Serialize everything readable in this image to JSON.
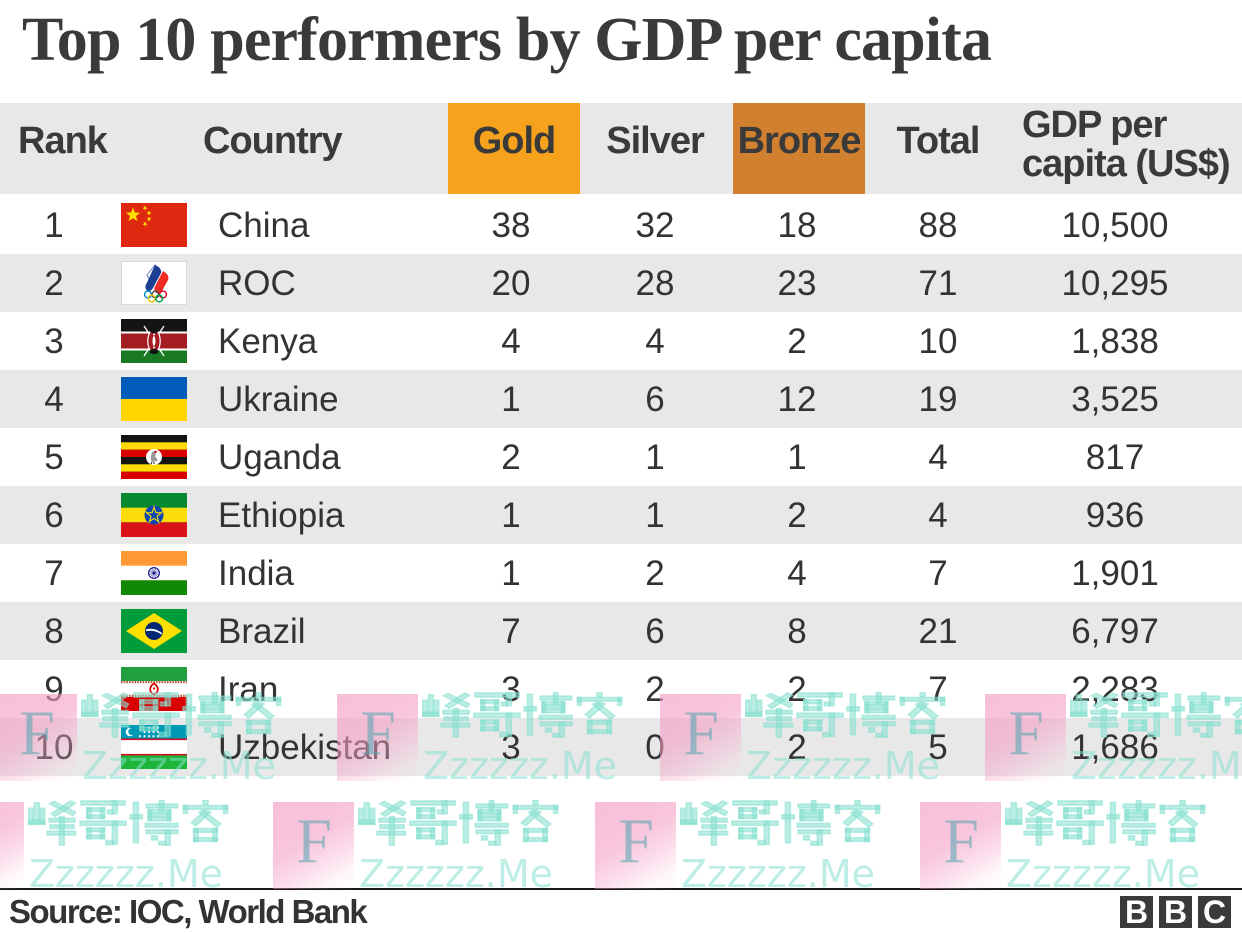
{
  "title": "Top 10 performers by GDP per capita",
  "chart_data": {
    "type": "table",
    "title": "Top 10 performers by GDP per capita",
    "columns": [
      "Rank",
      "Country",
      "Gold",
      "Silver",
      "Bronze",
      "Total",
      "GDP per capita (US$)"
    ],
    "header_highlights": {
      "Gold": "#f6a21d",
      "Bronze": "#d0802f"
    },
    "rows": [
      {
        "rank": "1",
        "flag": "china",
        "country": "China",
        "gold": "38",
        "silver": "32",
        "bronze": "18",
        "total": "88",
        "gdp": "10,500"
      },
      {
        "rank": "2",
        "flag": "roc",
        "country": "ROC",
        "gold": "20",
        "silver": "28",
        "bronze": "23",
        "total": "71",
        "gdp": "10,295"
      },
      {
        "rank": "3",
        "flag": "kenya",
        "country": "Kenya",
        "gold": "4",
        "silver": "4",
        "bronze": "2",
        "total": "10",
        "gdp": "1,838"
      },
      {
        "rank": "4",
        "flag": "ukraine",
        "country": "Ukraine",
        "gold": "1",
        "silver": "6",
        "bronze": "12",
        "total": "19",
        "gdp": "3,525"
      },
      {
        "rank": "5",
        "flag": "uganda",
        "country": "Uganda",
        "gold": "2",
        "silver": "1",
        "bronze": "1",
        "total": "4",
        "gdp": "817"
      },
      {
        "rank": "6",
        "flag": "ethiopia",
        "country": "Ethiopia",
        "gold": "1",
        "silver": "1",
        "bronze": "2",
        "total": "4",
        "gdp": "936"
      },
      {
        "rank": "7",
        "flag": "india",
        "country": "India",
        "gold": "1",
        "silver": "2",
        "bronze": "4",
        "total": "7",
        "gdp": "1,901"
      },
      {
        "rank": "8",
        "flag": "brazil",
        "country": "Brazil",
        "gold": "7",
        "silver": "6",
        "bronze": "8",
        "total": "21",
        "gdp": "6,797"
      },
      {
        "rank": "9",
        "flag": "iran",
        "country": "Iran",
        "gold": "3",
        "silver": "2",
        "bronze": "2",
        "total": "7",
        "gdp": "2,283"
      },
      {
        "rank": "10",
        "flag": "uzbekistan",
        "country": "Uzbekistan",
        "gold": "3",
        "silver": "0",
        "bronze": "2",
        "total": "5",
        "gdp": "1,686"
      }
    ]
  },
  "header": {
    "rank": "Rank",
    "country": "Country",
    "gold": "Gold",
    "silver": "Silver",
    "bronze": "Bronze",
    "total": "Total",
    "gdp_line1": "GDP per",
    "gdp_line2": "capita (US$)"
  },
  "footer": {
    "source": "Source: IOC, World Bank",
    "logo_letters": [
      "B",
      "B",
      "C"
    ]
  },
  "watermark": {
    "letter": "F",
    "cjk_text": "峰哥博客",
    "site": "Zzzzzz.Me",
    "pink": "#f796c5",
    "cyan": "#6ee6cd"
  },
  "colors": {
    "gold_header": "#f6a21d",
    "bronze_header": "#d0802f",
    "row_stripe": "#e7e7e7",
    "text": "#333333",
    "title_text": "#3a3a3a"
  }
}
